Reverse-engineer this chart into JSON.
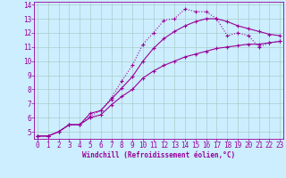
{
  "xlabel": "Windchill (Refroidissement éolien,°C)",
  "bg_color": "#cceeff",
  "grid_color": "#aacccc",
  "line_color": "#990099",
  "xmin": 0,
  "xmax": 23,
  "ymin": 4.5,
  "ymax": 14.2,
  "yticks": [
    5,
    6,
    7,
    8,
    9,
    10,
    11,
    12,
    13,
    14
  ],
  "xticks": [
    0,
    1,
    2,
    3,
    4,
    5,
    6,
    7,
    8,
    9,
    10,
    11,
    12,
    13,
    14,
    15,
    16,
    17,
    18,
    19,
    20,
    21,
    22,
    23
  ],
  "series1_x": [
    0,
    1,
    2,
    3,
    4,
    5,
    6,
    7,
    8,
    9,
    10,
    11,
    12,
    13,
    14,
    15,
    16,
    17,
    18,
    19,
    20,
    21,
    22,
    23
  ],
  "series1_y": [
    4.7,
    4.7,
    5.0,
    5.5,
    5.5,
    6.1,
    6.5,
    7.4,
    8.6,
    9.7,
    11.2,
    12.0,
    12.9,
    13.0,
    13.7,
    13.5,
    13.5,
    13.0,
    11.8,
    12.0,
    11.8,
    11.0,
    11.3,
    11.4
  ],
  "series2_x": [
    0,
    1,
    2,
    3,
    4,
    5,
    6,
    7,
    8,
    9,
    10,
    11,
    12,
    13,
    14,
    15,
    16,
    17,
    18,
    19,
    20,
    21,
    22,
    23
  ],
  "series2_y": [
    4.7,
    4.7,
    5.0,
    5.5,
    5.5,
    6.3,
    6.5,
    7.3,
    8.1,
    8.9,
    10.0,
    10.9,
    11.6,
    12.1,
    12.5,
    12.8,
    13.0,
    13.0,
    12.8,
    12.5,
    12.3,
    12.1,
    11.9,
    11.8
  ],
  "series3_x": [
    0,
    1,
    2,
    3,
    4,
    5,
    6,
    7,
    8,
    9,
    10,
    11,
    12,
    13,
    14,
    15,
    16,
    17,
    18,
    19,
    20,
    21,
    22,
    23
  ],
  "series3_y": [
    4.7,
    4.7,
    5.0,
    5.5,
    5.5,
    6.0,
    6.2,
    6.9,
    7.5,
    8.0,
    8.8,
    9.3,
    9.7,
    10.0,
    10.3,
    10.5,
    10.7,
    10.9,
    11.0,
    11.1,
    11.2,
    11.2,
    11.3,
    11.4
  ]
}
